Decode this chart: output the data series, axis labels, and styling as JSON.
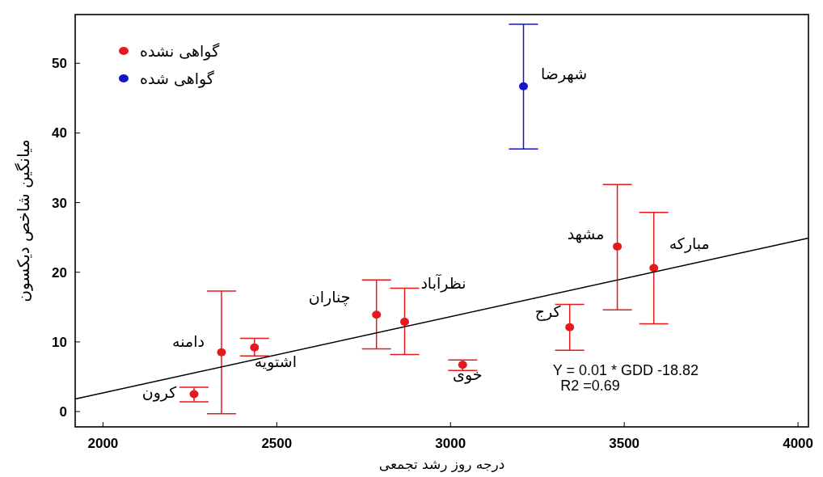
{
  "chart_data": {
    "type": "scatter",
    "xlabel": "درجه روز رشد تجمعی",
    "ylabel": "میانگین شاخص دیکسون",
    "xlim": [
      1920,
      4030
    ],
    "ylim": [
      -2.2,
      57
    ],
    "xticks": [
      2000,
      2500,
      3000,
      3500,
      4000
    ],
    "yticks": [
      0,
      10,
      20,
      30,
      40,
      50
    ],
    "legend": "top left",
    "marker": "circle",
    "series": [
      {
        "name": "گواهی نشده",
        "color": "#e41a1c",
        "x": [
          2262,
          2341,
          2436,
          2787,
          2868,
          3035,
          3343,
          3480,
          3585
        ],
        "values": [
          2.5,
          8.5,
          9.2,
          13.9,
          12.9,
          6.7,
          12.1,
          23.7,
          20.6
        ],
        "errors": [
          [
            1.4,
            3.5
          ],
          [
            -0.3,
            17.3
          ],
          [
            8.0,
            10.5
          ],
          [
            9.0,
            18.9
          ],
          [
            8.2,
            17.7
          ],
          [
            5.9,
            7.4
          ],
          [
            8.8,
            15.4
          ],
          [
            14.6,
            32.6
          ],
          [
            12.6,
            28.6
          ]
        ]
      },
      {
        "name": "گواهی شده",
        "color": "#1414c8",
        "x": [
          3210
        ],
        "values": [
          46.7
        ],
        "errors": [
          [
            37.7,
            55.6
          ]
        ]
      },
      {
        "type": "line",
        "marker": "none",
        "color": "#000000",
        "x": [
          1920,
          4030
        ],
        "values": [
          1.8,
          24.9
        ]
      }
    ],
    "annotations": [
      {
        "text": "کرون",
        "x": 2262,
        "y": 2.5
      },
      {
        "text": "دامنه",
        "x": 2341,
        "y": 8.5
      },
      {
        "text": "اشتویه",
        "x": 2436,
        "y": 9.2
      },
      {
        "text": "چناران",
        "x": 2787,
        "y": 13.9
      },
      {
        "text": "نظرآباد",
        "x": 2868,
        "y": 12.9
      },
      {
        "text": "خوی",
        "x": 3035,
        "y": 6.7
      },
      {
        "text": "کرج",
        "x": 3343,
        "y": 12.1
      },
      {
        "text": "مشهد",
        "x": 3480,
        "y": 23.7
      },
      {
        "text": "مبارکه",
        "x": 3585,
        "y": 20.6
      },
      {
        "text": "شهرضا",
        "x": 3210,
        "y": 46.7
      },
      "Y = 0.01 * GDD -18.82",
      "R2 =0.69"
    ]
  }
}
